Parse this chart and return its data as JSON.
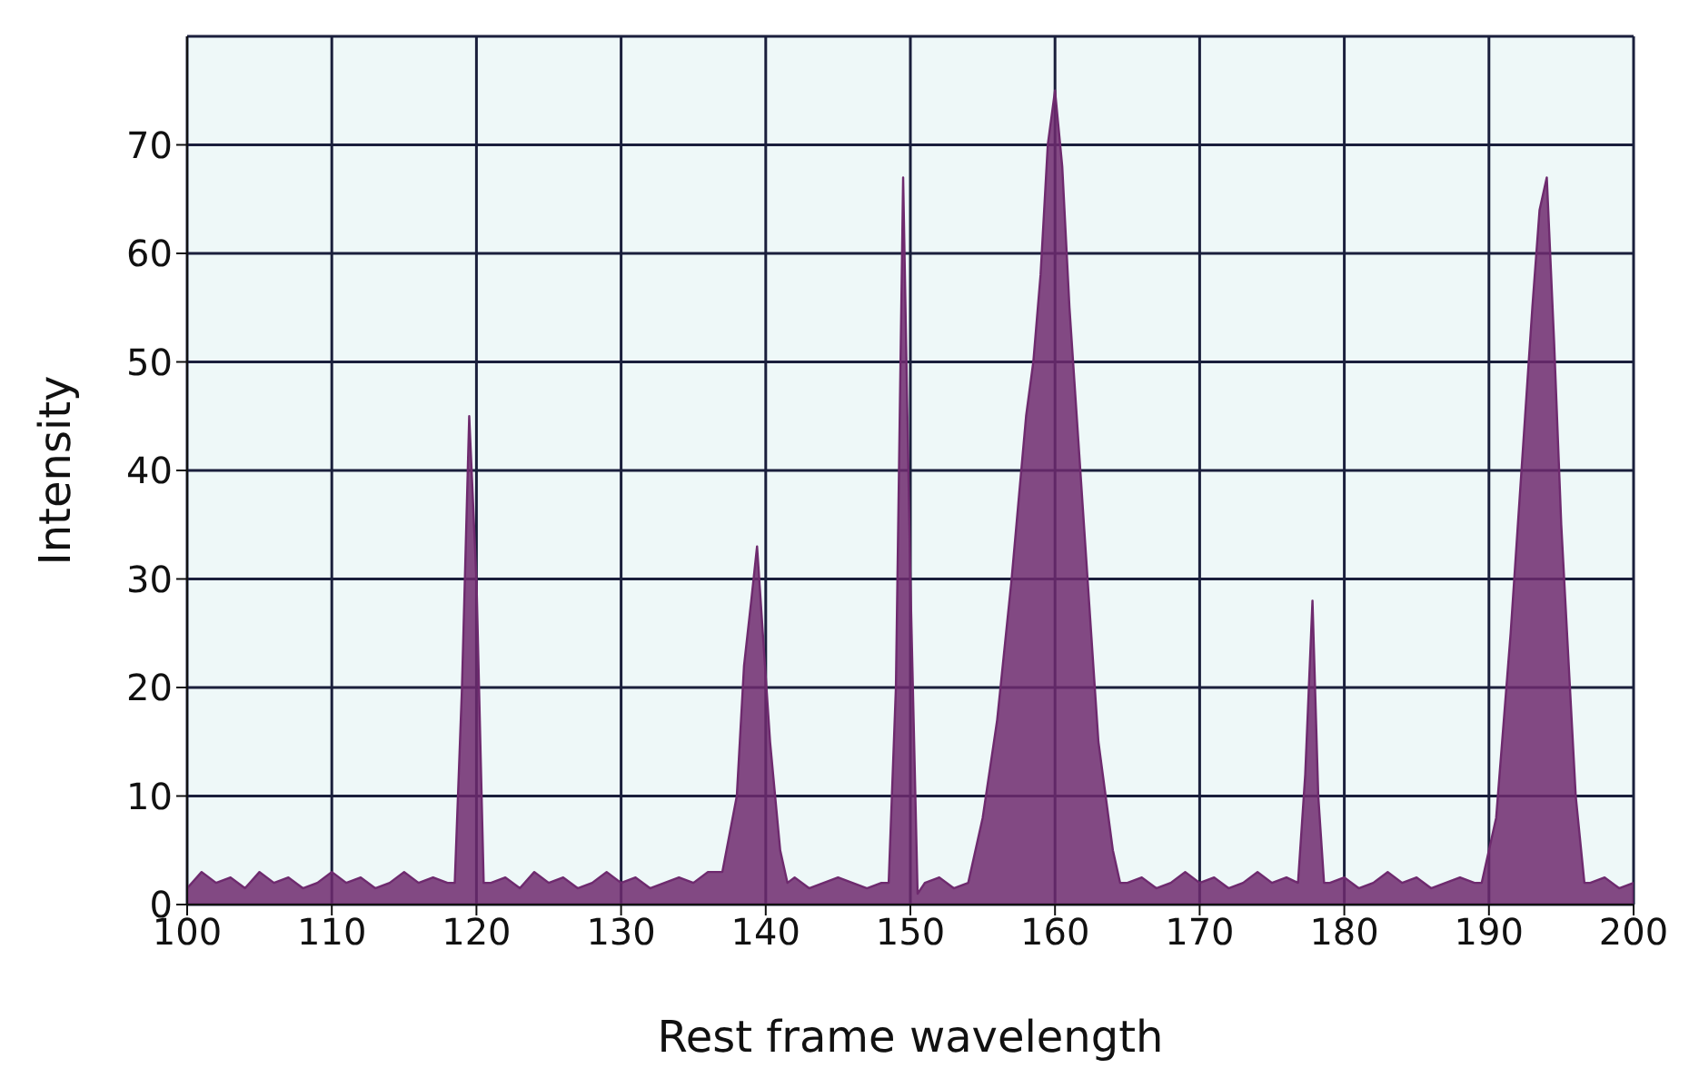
{
  "chart_data": {
    "type": "area",
    "xlabel": "Rest frame wavelength",
    "ylabel": "Intensity",
    "xlim": [
      100,
      200
    ],
    "ylim": [
      0,
      80
    ],
    "xticks": [
      100,
      110,
      120,
      130,
      140,
      150,
      160,
      170,
      180,
      190,
      200
    ],
    "yticks": [
      0,
      10,
      20,
      30,
      40,
      50,
      60,
      70
    ],
    "grid": true,
    "series": [
      {
        "color": "#6e2a6e",
        "x": [
          100,
          101,
          102,
          103,
          104,
          105,
          106,
          107,
          108,
          109,
          110,
          111,
          112,
          113,
          114,
          115,
          116,
          117,
          118,
          118.5,
          119,
          119.5,
          120,
          120.5,
          121,
          122,
          123,
          124,
          125,
          126,
          127,
          128,
          129,
          130,
          131,
          132,
          133,
          134,
          135,
          136,
          137,
          138,
          138.5,
          139,
          139.4,
          139.8,
          140.3,
          141,
          141.5,
          142,
          143,
          144,
          145,
          146,
          147,
          148,
          148.5,
          149,
          149.5,
          150,
          150.5,
          151,
          152,
          153,
          154,
          155,
          156,
          157,
          158,
          158.5,
          159,
          159.5,
          160,
          160.5,
          161,
          162,
          163,
          164,
          164.5,
          165,
          166,
          167,
          168,
          169,
          170,
          171,
          172,
          173,
          174,
          175,
          176,
          176.8,
          177.3,
          177.8,
          178.2,
          178.6,
          179,
          180,
          181,
          182,
          183,
          184,
          185,
          186,
          187,
          188,
          189,
          189.5,
          190.5,
          191.5,
          192.5,
          193,
          193.5,
          194,
          194.5,
          195,
          196,
          196.6,
          197,
          198,
          199,
          200
        ],
        "values": [
          1.5,
          3,
          2,
          2.5,
          1.5,
          3,
          2,
          2.5,
          1.5,
          2,
          3,
          2,
          2.5,
          1.5,
          2,
          3,
          2,
          2.5,
          2,
          2,
          20,
          45,
          30,
          2,
          2,
          2.5,
          1.5,
          3,
          2,
          2.5,
          1.5,
          2,
          3,
          2,
          2.5,
          1.5,
          2,
          2.5,
          2,
          3,
          3,
          10,
          22,
          28,
          33,
          25,
          15,
          5,
          2,
          2.5,
          1.5,
          2,
          2.5,
          2,
          1.5,
          2,
          2,
          20,
          67,
          30,
          1,
          2,
          2.5,
          1.5,
          2,
          8,
          17,
          30,
          45,
          50,
          58,
          70,
          75,
          68,
          55,
          35,
          15,
          5,
          2,
          2,
          2.5,
          1.5,
          2,
          3,
          2,
          2.5,
          1.5,
          2,
          3,
          2,
          2.5,
          2,
          12,
          28,
          10,
          2,
          2,
          2.5,
          1.5,
          2,
          3,
          2,
          2.5,
          1.5,
          2,
          2.5,
          2,
          2,
          8,
          25,
          45,
          55,
          64,
          67,
          52,
          35,
          10,
          2,
          2,
          2.5,
          1.5,
          2
        ]
      }
    ]
  }
}
